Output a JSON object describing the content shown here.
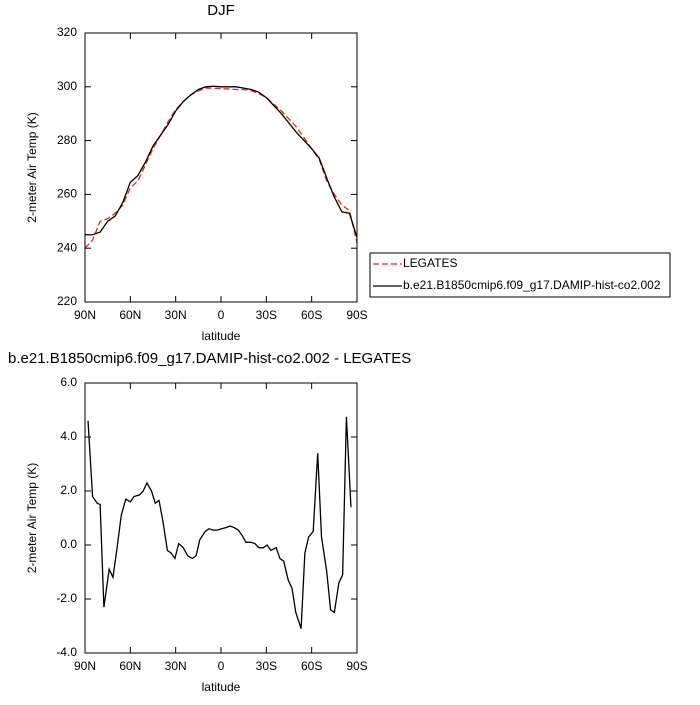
{
  "chart_data": [
    {
      "type": "line",
      "title": "DJF",
      "xlabel": "latitude",
      "ylabel": "2-meter Air Temp (K)",
      "x": [
        90,
        85,
        80,
        75,
        70,
        65,
        60,
        55,
        50,
        45,
        40,
        35,
        30,
        25,
        20,
        15,
        10,
        5,
        0,
        -5,
        -10,
        -15,
        -20,
        -25,
        -30,
        -35,
        -40,
        -45,
        -50,
        -55,
        -60,
        -65,
        -70,
        -75,
        -80,
        -85,
        -90
      ],
      "series": [
        {
          "name": "LEGATES",
          "color": "#e0291e",
          "dash": true,
          "values": [
            240,
            243,
            250,
            251,
            253,
            256,
            262.5,
            265,
            271,
            277,
            282,
            287,
            291.5,
            294.5,
            297,
            298.5,
            299.5,
            299.5,
            299.3,
            299.2,
            299,
            299,
            298.5,
            297.5,
            296,
            293.5,
            291,
            288,
            285,
            281,
            277,
            273,
            265,
            260,
            256,
            254,
            242
          ]
        },
        {
          "name": "b.e21.B1850cmip6.f09_g17.DAMIP-hist-co2.002",
          "color": "#000000",
          "dash": false,
          "values": [
            245,
            245,
            246,
            250,
            252,
            257,
            264.5,
            267,
            272,
            278,
            282,
            286,
            291,
            294.5,
            297,
            299,
            300,
            300.2,
            300,
            300,
            300,
            299.5,
            299,
            298,
            296,
            293,
            290,
            286.5,
            283,
            280,
            277,
            273.5,
            266,
            259,
            253.5,
            253,
            244
          ]
        }
      ],
      "xlim": [
        90,
        -90
      ],
      "xticks": [
        {
          "value": 90,
          "label": "90N"
        },
        {
          "value": 60,
          "label": "60N"
        },
        {
          "value": 30,
          "label": "30N"
        },
        0,
        {
          "value": -30,
          "label": "30S"
        },
        {
          "value": -60,
          "label": "60S"
        },
        {
          "value": -90,
          "label": "90S"
        }
      ],
      "ylim": [
        220,
        320
      ],
      "yticks": [
        220,
        240,
        260,
        280,
        300,
        320
      ],
      "grid": false,
      "legend": "right"
    },
    {
      "type": "line",
      "title": "b.e21.B1850cmip6.f09_g17.DAMIP-hist-co2.002 - LEGATES",
      "xlabel": "latitude",
      "ylabel": "2-meter Air Temp (K)",
      "x": [
        88,
        85,
        82,
        80,
        77.5,
        74,
        71.5,
        69,
        66,
        63,
        60,
        57.5,
        54,
        51.5,
        49,
        46,
        43.5,
        41,
        38.5,
        35.5,
        33,
        30.5,
        28,
        25,
        22,
        19,
        16.5,
        14,
        10.5,
        8,
        5,
        2.5,
        -0.5,
        -3.5,
        -6,
        -8.5,
        -11.5,
        -14,
        -16.5,
        -20,
        -22.5,
        -25,
        -28,
        -30.5,
        -33,
        -36.5,
        -39,
        -41.5,
        -44.5,
        -47,
        -49.5,
        -53,
        -55.5,
        -58,
        -61,
        -64,
        -66.5,
        -70,
        -72.5,
        -75,
        -78,
        -80.5,
        -83,
        -86
      ],
      "values": [
        4.6,
        1.8,
        1.55,
        1.5,
        -2.3,
        -0.9,
        -1.2,
        -0.2,
        1.1,
        1.7,
        1.6,
        1.8,
        1.85,
        2.0,
        2.3,
        2.0,
        1.55,
        1.65,
        0.9,
        -0.2,
        -0.3,
        -0.5,
        0.05,
        -0.1,
        -0.4,
        -0.5,
        -0.4,
        0.2,
        0.5,
        0.6,
        0.55,
        0.55,
        0.6,
        0.65,
        0.7,
        0.65,
        0.55,
        0.35,
        0.1,
        0.1,
        0.05,
        -0.1,
        -0.1,
        0,
        -0.2,
        -0.1,
        -0.5,
        -0.6,
        -1.3,
        -1.6,
        -2.5,
        -3.1,
        -0.3,
        0.3,
        0.5,
        3.4,
        0.3,
        -1.0,
        -2.4,
        -2.5,
        -1.4,
        -1.1,
        4.75,
        1.4
      ],
      "color": "#000000",
      "xlim": [
        90,
        -90
      ],
      "xticks": [
        {
          "value": 90,
          "label": "90N"
        },
        {
          "value": 60,
          "label": "60N"
        },
        {
          "value": 30,
          "label": "30N"
        },
        0,
        {
          "value": -30,
          "label": "30S"
        },
        {
          "value": -60,
          "label": "60S"
        },
        {
          "value": -90,
          "label": "90S"
        }
      ],
      "ylim": [
        -4,
        6
      ],
      "yticks": [
        {
          "value": -4,
          "label": "-4.0"
        },
        {
          "value": -2,
          "label": "-2.0"
        },
        {
          "value": 0,
          "label": "0.0"
        },
        {
          "value": 2,
          "label": "2.0"
        },
        {
          "value": 4,
          "label": "4.0"
        },
        {
          "value": 6,
          "label": "6.0"
        }
      ],
      "grid": false
    }
  ]
}
